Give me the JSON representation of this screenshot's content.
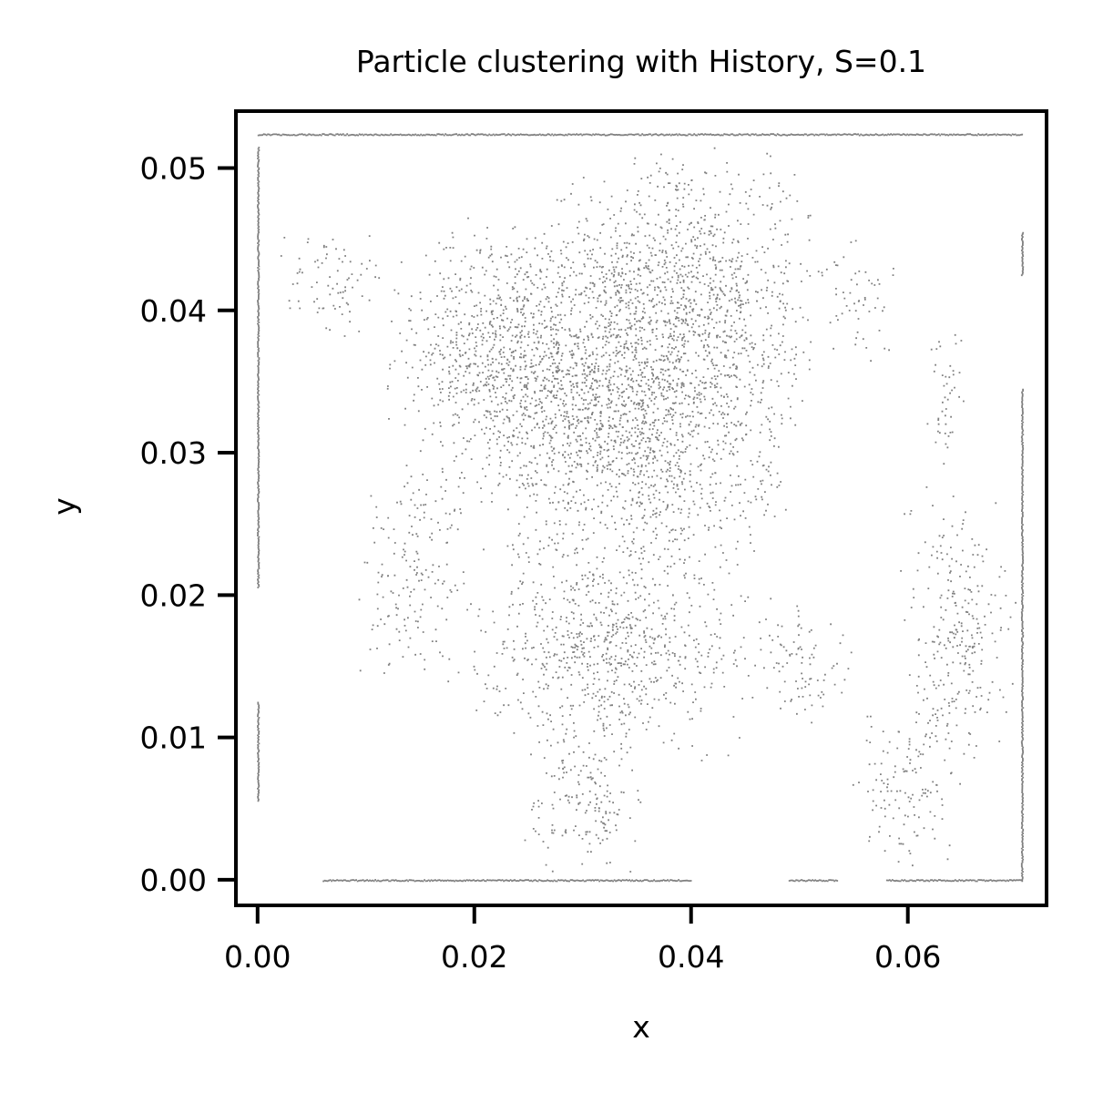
{
  "chart_data": {
    "type": "scatter",
    "title": "Particle clustering with History, S=0.1",
    "xlabel": "x",
    "ylabel": "y",
    "xlim": [
      -0.002,
      0.0728
    ],
    "ylim": [
      -0.0018,
      0.054
    ],
    "x_ticks": [
      {
        "value": 0.0,
        "label": "0.00"
      },
      {
        "value": 0.02,
        "label": "0.02"
      },
      {
        "value": 0.04,
        "label": "0.04"
      },
      {
        "value": 0.06,
        "label": "0.06"
      }
    ],
    "y_ticks": [
      {
        "value": 0.0,
        "label": "0.00"
      },
      {
        "value": 0.01,
        "label": "0.01"
      },
      {
        "value": 0.02,
        "label": "0.02"
      },
      {
        "value": 0.03,
        "label": "0.03"
      },
      {
        "value": 0.04,
        "label": "0.04"
      },
      {
        "value": 0.05,
        "label": "0.05"
      }
    ],
    "grid": false,
    "legend": "none",
    "marker_color": "#808080",
    "axes_color": "#000000",
    "series": [
      {
        "name": "",
        "regions": [
          {
            "kind": "blob",
            "x": [
              0.0115,
              0.0355
            ],
            "y": [
              0.026,
              0.047
            ],
            "density": 1.0
          },
          {
            "kind": "blob",
            "x": [
              0.02,
              0.05
            ],
            "y": [
              0.02,
              0.044
            ],
            "density": 1.0
          },
          {
            "kind": "blob",
            "x": [
              0.026,
              0.052
            ],
            "y": [
              0.03,
              0.052
            ],
            "density": 0.9
          },
          {
            "kind": "blob",
            "x": [
              0.019,
              0.046
            ],
            "y": [
              0.008,
              0.024
            ],
            "density": 0.85
          },
          {
            "kind": "blob",
            "x": [
              0.024,
              0.036
            ],
            "y": [
              0.0,
              0.011
            ],
            "density": 0.6
          },
          {
            "kind": "blob",
            "x": [
              0.0015,
              0.012
            ],
            "y": [
              0.038,
              0.046
            ],
            "density": 0.45
          },
          {
            "kind": "blob",
            "x": [
              0.009,
              0.02
            ],
            "y": [
              0.013,
              0.03
            ],
            "density": 0.45
          },
          {
            "kind": "blob",
            "x": [
              0.059,
              0.07
            ],
            "y": [
              0.008,
              0.028
            ],
            "density": 0.6
          },
          {
            "kind": "blob",
            "x": [
              0.061,
              0.0655
            ],
            "y": [
              0.028,
              0.04
            ],
            "density": 0.4
          },
          {
            "kind": "blob",
            "x": [
              0.0545,
              0.065
            ],
            "y": [
              0.0,
              0.013
            ],
            "density": 0.45
          },
          {
            "kind": "blob",
            "x": [
              0.051,
              0.06
            ],
            "y": [
              0.036,
              0.046
            ],
            "density": 0.3
          },
          {
            "kind": "blob",
            "x": [
              0.045,
              0.055
            ],
            "y": [
              0.01,
              0.02
            ],
            "density": 0.45
          },
          {
            "kind": "hline",
            "x": [
              0.0,
              0.0705
            ],
            "y": 0.0524
          },
          {
            "kind": "hline",
            "x": [
              0.006,
              0.04
            ],
            "y": 0.0
          },
          {
            "kind": "hline",
            "x": [
              0.049,
              0.0535
            ],
            "y": 0.0
          },
          {
            "kind": "hline",
            "x": [
              0.058,
              0.0705
            ],
            "y": 0.0
          },
          {
            "kind": "vline",
            "x": 0.0,
            "y": [
              0.0205,
              0.0515
            ]
          },
          {
            "kind": "vline",
            "x": 0.0,
            "y": [
              0.0055,
              0.0125
            ]
          },
          {
            "kind": "vline",
            "x": 0.0705,
            "y": [
              0.0425,
              0.0455
            ]
          },
          {
            "kind": "vline",
            "x": 0.0705,
            "y": [
              0.0,
              0.0345
            ]
          }
        ]
      }
    ]
  }
}
